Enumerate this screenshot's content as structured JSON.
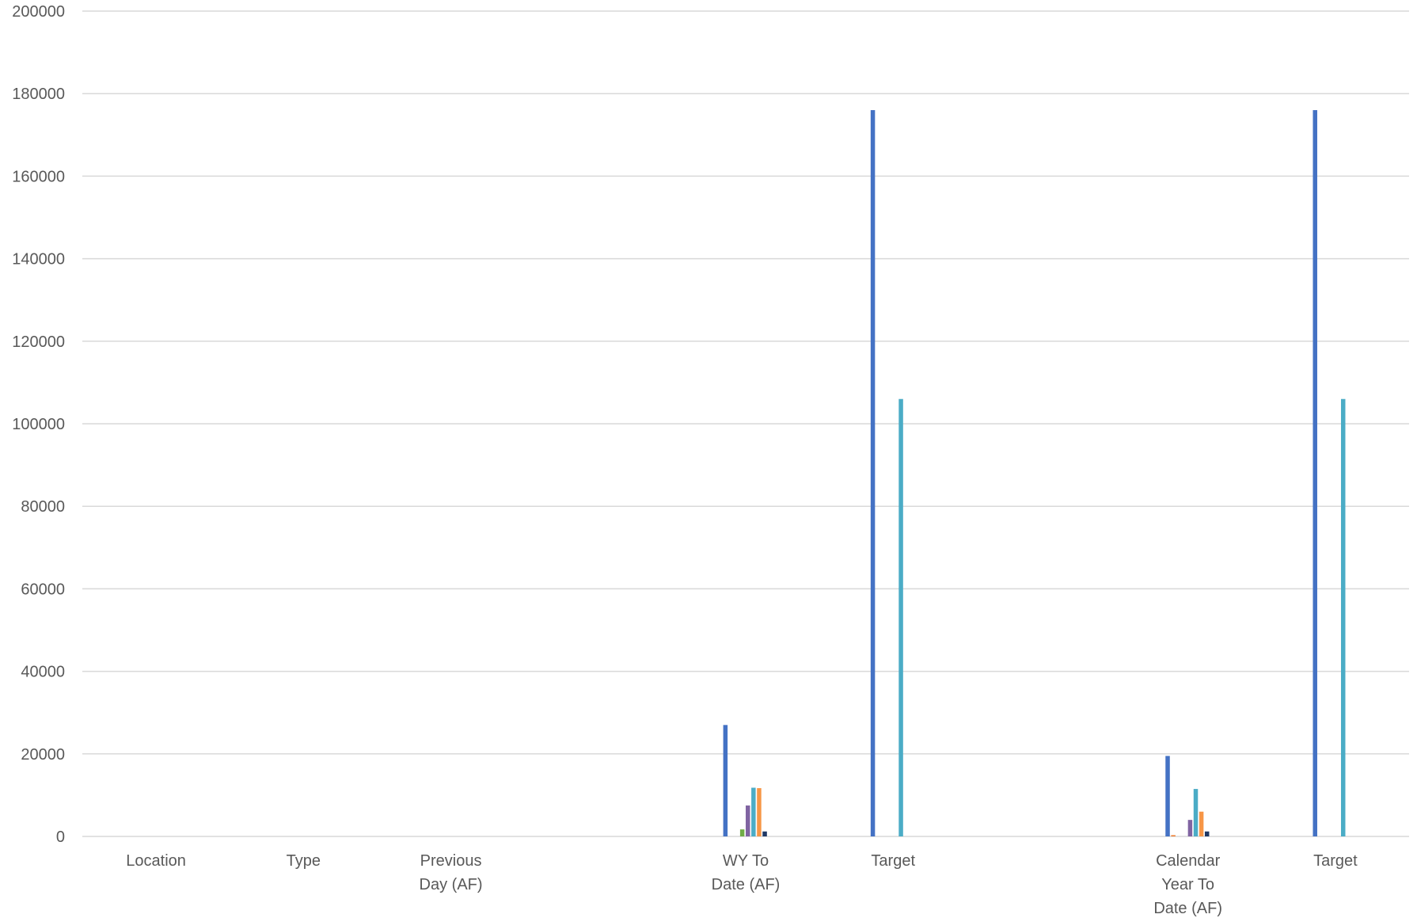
{
  "chart_data": {
    "type": "bar",
    "title": "",
    "xlabel": "",
    "ylabel": "",
    "ylim": [
      0,
      200000
    ],
    "yticks": [
      "0",
      "20000",
      "40000",
      "60000",
      "80000",
      "100000",
      "120000",
      "140000",
      "160000",
      "180000",
      "200000"
    ],
    "grid": true,
    "legend": "none",
    "categories": [
      {
        "label": [
          "Location"
        ]
      },
      {
        "label": [
          "Type"
        ]
      },
      {
        "label": [
          "Previous",
          "Day (AF)"
        ]
      },
      {
        "label": [
          ""
        ]
      },
      {
        "label": [
          "WY To",
          "Date (AF)"
        ]
      },
      {
        "label": [
          "Target"
        ]
      },
      {
        "label": [
          ""
        ]
      },
      {
        "label": [
          "Calendar",
          "Year To",
          "Date (AF)"
        ]
      },
      {
        "label": [
          "Target"
        ]
      }
    ],
    "series": [
      {
        "color": "#4472c4",
        "values": [
          0,
          0,
          0,
          0,
          27000,
          176000,
          0,
          19500,
          176000
        ]
      },
      {
        "color": "#ed7d31",
        "values": [
          0,
          0,
          0,
          0,
          0,
          0,
          0,
          300,
          0
        ]
      },
      {
        "color": "#a5a5a5",
        "values": [
          0,
          0,
          0,
          0,
          0,
          0,
          0,
          0,
          0
        ]
      },
      {
        "color": "#70ad47",
        "values": [
          0,
          0,
          0,
          0,
          1700,
          0,
          0,
          0,
          0
        ]
      },
      {
        "color": "#8064a2",
        "values": [
          0,
          0,
          0,
          0,
          7500,
          0,
          0,
          4000,
          0
        ]
      },
      {
        "color": "#4bacc6",
        "values": [
          0,
          0,
          0,
          0,
          11800,
          106000,
          0,
          11500,
          106000
        ]
      },
      {
        "color": "#f79646",
        "values": [
          0,
          0,
          0,
          0,
          11700,
          0,
          0,
          6000,
          0
        ]
      },
      {
        "color": "#1f3864",
        "values": [
          0,
          0,
          0,
          0,
          1200,
          0,
          0,
          1200,
          0
        ]
      }
    ]
  }
}
